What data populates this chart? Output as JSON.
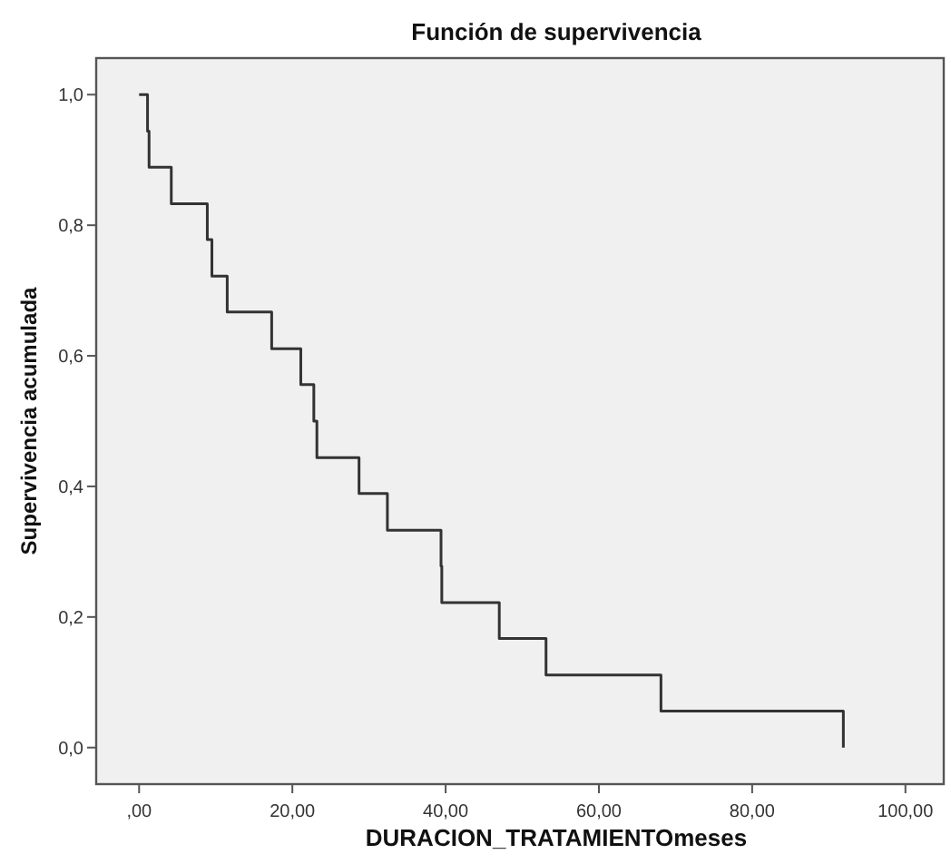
{
  "chart_data": {
    "type": "step",
    "title": "Función de supervivencia",
    "xlabel": "DURACION_TRATAMIENTOmeses",
    "ylabel": "Supervivencia acumulada",
    "x": [
      0,
      1.1,
      1.3,
      4.2,
      8.9,
      9.5,
      11.5,
      17.3,
      21.1,
      22.8,
      23.2,
      28.7,
      32.4,
      39.4,
      39.5,
      47.0,
      53.1,
      68.1,
      91.9
    ],
    "series": [
      {
        "color": "#333333",
        "values": [
          1,
          0.944,
          0.889,
          0.833,
          0.778,
          0.722,
          0.667,
          0.611,
          0.556,
          0.5,
          0.444,
          0.389,
          0.333,
          0.278,
          0.222,
          0.167,
          0.111,
          0.056,
          0
        ]
      }
    ],
    "xlim": [
      -5.6,
      105
    ],
    "ylim": [
      -0.056,
      1.056
    ],
    "xticks": [
      {
        "value": 0,
        "label": ",00"
      },
      {
        "value": 20,
        "label": "20,00"
      },
      {
        "value": 40,
        "label": "40,00"
      },
      {
        "value": 60,
        "label": "60,00"
      },
      {
        "value": 80,
        "label": "80,00"
      },
      {
        "value": 100,
        "label": "100,00"
      }
    ],
    "yticks": [
      {
        "value": 0,
        "label": "0,0"
      },
      {
        "value": 0.2,
        "label": "0,2"
      },
      {
        "value": 0.4,
        "label": "0,4"
      },
      {
        "value": 0.6,
        "label": "0,6"
      },
      {
        "value": 0.8,
        "label": "0,8"
      },
      {
        "value": 1,
        "label": "1,0"
      }
    ],
    "marker": "none",
    "line_style": "solid"
  }
}
